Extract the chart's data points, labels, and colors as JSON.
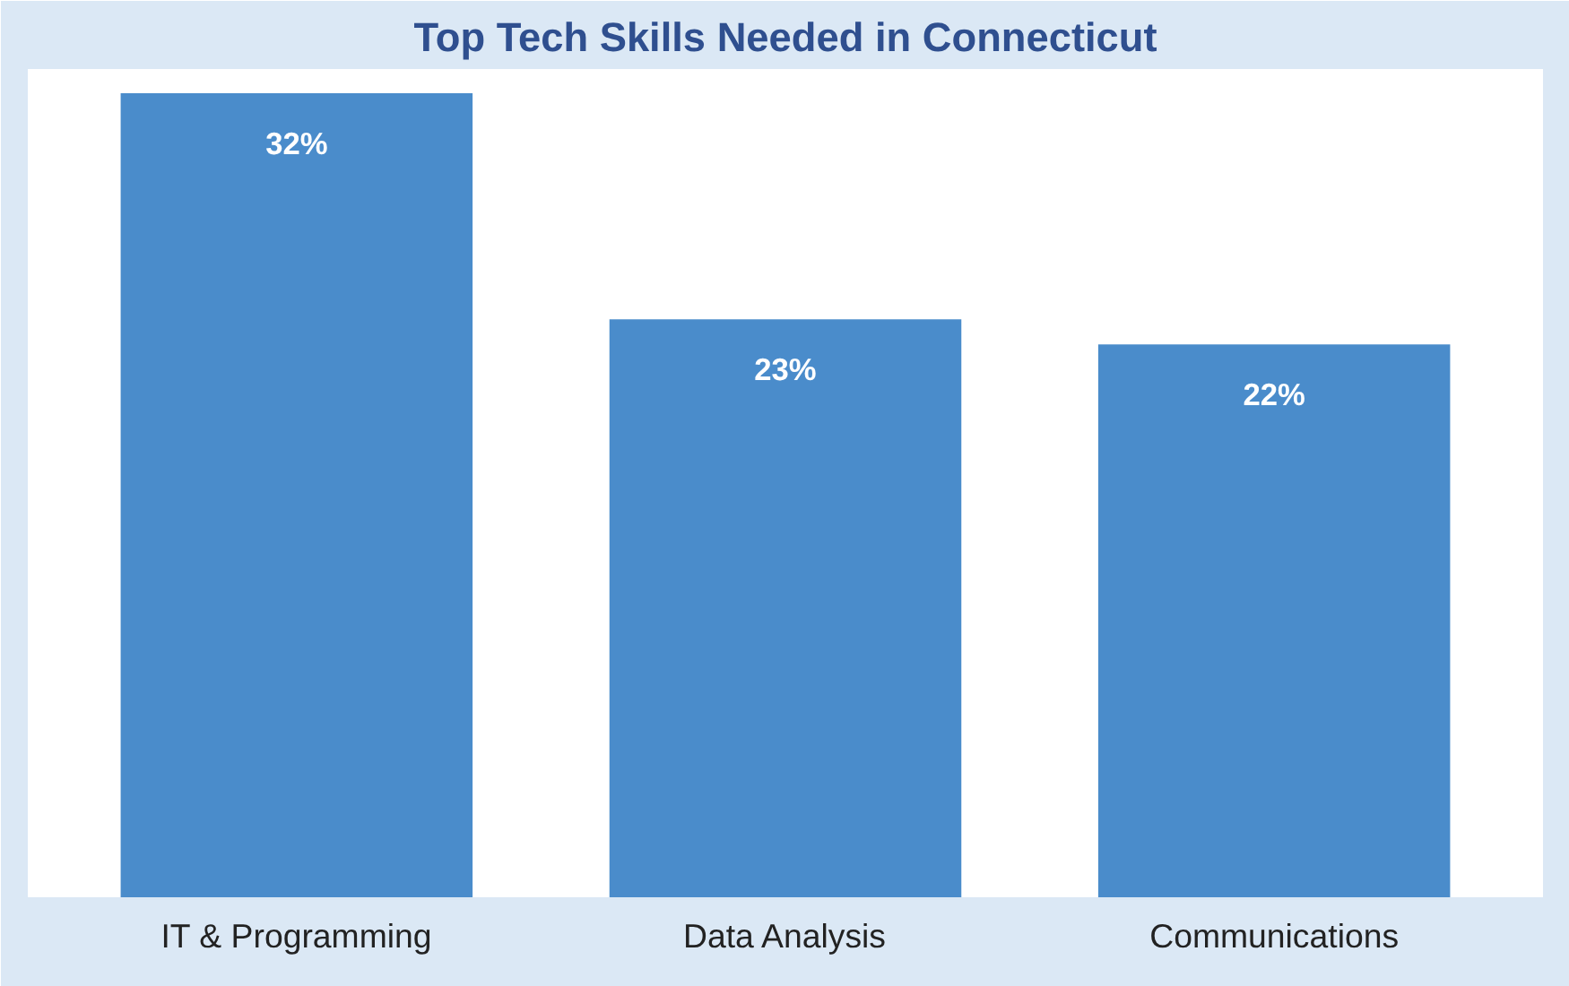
{
  "chart_data": {
    "type": "bar",
    "title": "Top Tech Skills Needed in Connecticut",
    "categories": [
      "IT & Programming",
      "Data Analysis",
      "Communications"
    ],
    "values": [
      32,
      23,
      22
    ],
    "color": "#4a8ccb",
    "value_labels": [
      "32%",
      "23%",
      "22%"
    ],
    "grid": false
  }
}
